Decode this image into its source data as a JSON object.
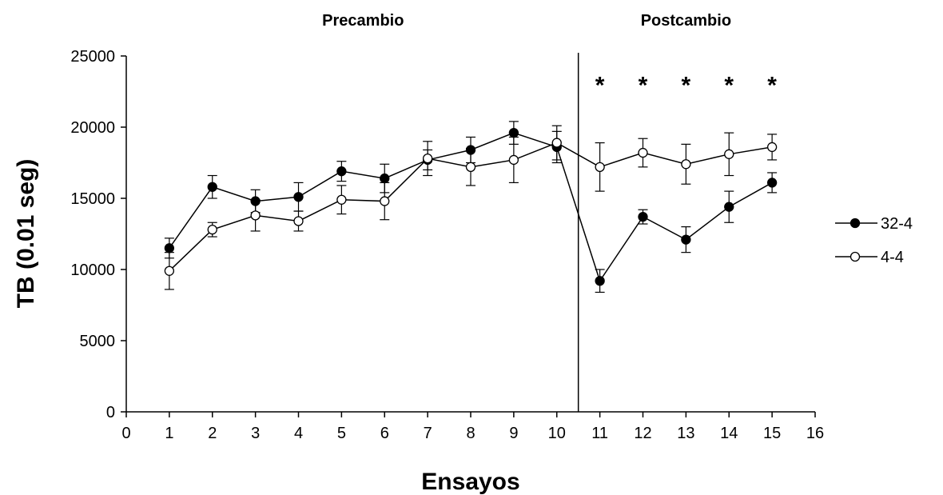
{
  "chart_data": {
    "type": "line",
    "title": "",
    "xlabel": "Ensayos",
    "ylabel": "TB (0.01 seg)",
    "xlim": [
      0,
      16
    ],
    "ylim": [
      0,
      25000
    ],
    "x_ticks": [
      "0",
      "1",
      "2",
      "3",
      "4",
      "5",
      "6",
      "7",
      "8",
      "9",
      "10",
      "11",
      "12",
      "13",
      "14",
      "15",
      "16"
    ],
    "y_ticks": [
      "0",
      "5000",
      "10000",
      "15000",
      "20000",
      "25000"
    ],
    "grid": false,
    "legend_position": "right",
    "phases": [
      {
        "label": "Precambio",
        "x_center": 5.5
      },
      {
        "label": "Postcambio",
        "x_center": 13
      }
    ],
    "divider_x": 10.5,
    "significance": {
      "marker": "*",
      "x": [
        11,
        12,
        13,
        14,
        15
      ],
      "y": 23500
    },
    "x": [
      1,
      2,
      3,
      4,
      5,
      6,
      7,
      8,
      9,
      10,
      11,
      12,
      13,
      14,
      15
    ],
    "series": [
      {
        "name": "32-4",
        "marker": "filled-circle",
        "color": "#000000",
        "values": [
          11500,
          15800,
          14800,
          15100,
          16900,
          16400,
          17700,
          18400,
          19600,
          18600,
          9200,
          13700,
          12100,
          14400,
          16100
        ],
        "errors": [
          700,
          800,
          800,
          1000,
          700,
          1000,
          700,
          900,
          800,
          1100,
          800,
          500,
          900,
          1100,
          700
        ]
      },
      {
        "name": "4-4",
        "marker": "open-circle",
        "color": "#000000",
        "values": [
          9900,
          12800,
          13800,
          13400,
          14900,
          14800,
          17800,
          17200,
          17700,
          18900,
          17200,
          18200,
          17400,
          18100,
          18600
        ],
        "errors": [
          1300,
          500,
          1100,
          700,
          1000,
          1300,
          1200,
          1300,
          1600,
          1200,
          1700,
          1000,
          1400,
          1500,
          900
        ]
      }
    ]
  }
}
